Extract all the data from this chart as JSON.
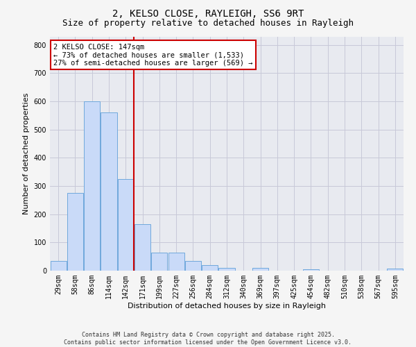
{
  "title1": "2, KELSO CLOSE, RAYLEIGH, SS6 9RT",
  "title2": "Size of property relative to detached houses in Rayleigh",
  "xlabel": "Distribution of detached houses by size in Rayleigh",
  "ylabel": "Number of detached properties",
  "bin_labels": [
    "29sqm",
    "58sqm",
    "86sqm",
    "114sqm",
    "142sqm",
    "171sqm",
    "199sqm",
    "227sqm",
    "256sqm",
    "284sqm",
    "312sqm",
    "340sqm",
    "369sqm",
    "397sqm",
    "425sqm",
    "454sqm",
    "482sqm",
    "510sqm",
    "538sqm",
    "567sqm",
    "595sqm"
  ],
  "bar_heights": [
    35,
    275,
    600,
    560,
    325,
    165,
    65,
    65,
    35,
    20,
    10,
    0,
    10,
    0,
    0,
    5,
    0,
    0,
    0,
    0,
    8
  ],
  "bar_color": "#c9daf8",
  "bar_edge_color": "#6fa8dc",
  "vline_color": "#cc0000",
  "annotation_box_text": "2 KELSO CLOSE: 147sqm\n← 73% of detached houses are smaller (1,533)\n27% of semi-detached houses are larger (569) →",
  "annotation_box_color": "#cc0000",
  "annotation_text_color": "#000000",
  "annotation_bg": "#ffffff",
  "ylim": [
    0,
    830
  ],
  "yticks": [
    0,
    100,
    200,
    300,
    400,
    500,
    600,
    700,
    800
  ],
  "grid_color": "#c8c8d8",
  "plot_bg": "#e8eaf0",
  "fig_bg": "#f5f5f5",
  "footnote1": "Contains HM Land Registry data © Crown copyright and database right 2025.",
  "footnote2": "Contains public sector information licensed under the Open Government Licence v3.0.",
  "title_fontsize": 10,
  "subtitle_fontsize": 9,
  "label_fontsize": 8,
  "tick_fontsize": 7,
  "annot_fontsize": 7.5
}
